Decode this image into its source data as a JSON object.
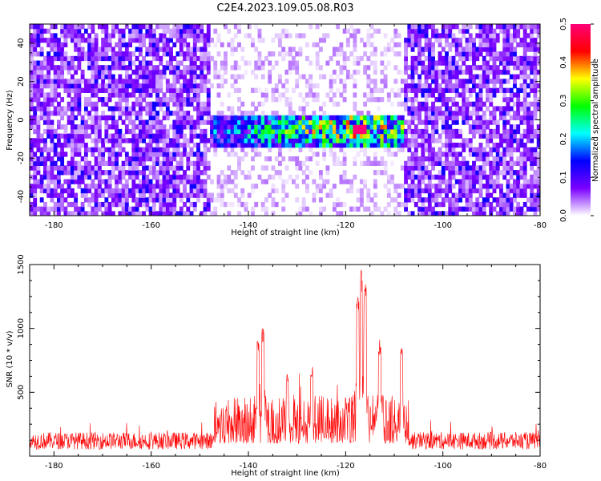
{
  "title": "C2E4.2023.109.05.08.R03",
  "chart_data": [
    {
      "type": "heatmap",
      "xlabel": "Height of straight line (km)",
      "ylabel": "Frequency (Hz)",
      "xlim": [
        -185,
        -80
      ],
      "ylim": [
        -50,
        50
      ],
      "x_ticks": [
        -180,
        -160,
        -140,
        -120,
        -100,
        -80
      ],
      "y_ticks": [
        -40,
        -20,
        0,
        20,
        40
      ],
      "colorbar": {
        "label": "Normalized spectral amplitude",
        "range": [
          0,
          0.5
        ],
        "ticks": [
          "0.0",
          "0.1",
          "0.2",
          "0.3",
          "0.4",
          "0.5"
        ],
        "colors": [
          "#ffffff",
          "#7a00ff",
          "#0000ff",
          "#00ffff",
          "#00ff00",
          "#ffff00",
          "#ff0000",
          "#ff0077"
        ]
      },
      "signal_band": {
        "x_range": [
          -148,
          -108
        ],
        "frequency_range": [
          -15,
          3
        ],
        "peak_x": -117,
        "peak_frequency": -5,
        "peak_amplitude": 0.5
      },
      "noise_gap": {
        "x_range": [
          -148,
          -108
        ]
      }
    },
    {
      "type": "line",
      "xlabel": "Height of straight line (km)",
      "ylabel": "SNR (10 * v/v)",
      "xlim": [
        -185,
        -80
      ],
      "ylim": [
        0,
        1500
      ],
      "x_ticks": [
        -180,
        -160,
        -140,
        -120,
        -100,
        -80
      ],
      "y_ticks": [
        500,
        1000,
        1500
      ],
      "color": "#ff0000",
      "noise_baseline": 150,
      "peaks": [
        {
          "x": -138,
          "y": 930
        },
        {
          "x": -137,
          "y": 1050
        },
        {
          "x": -132,
          "y": 650
        },
        {
          "x": -127,
          "y": 720
        },
        {
          "x": -117.5,
          "y": 1250
        },
        {
          "x": -116.8,
          "y": 1500
        },
        {
          "x": -116,
          "y": 1350
        },
        {
          "x": -113,
          "y": 930
        },
        {
          "x": -108.5,
          "y": 850
        }
      ]
    }
  ]
}
